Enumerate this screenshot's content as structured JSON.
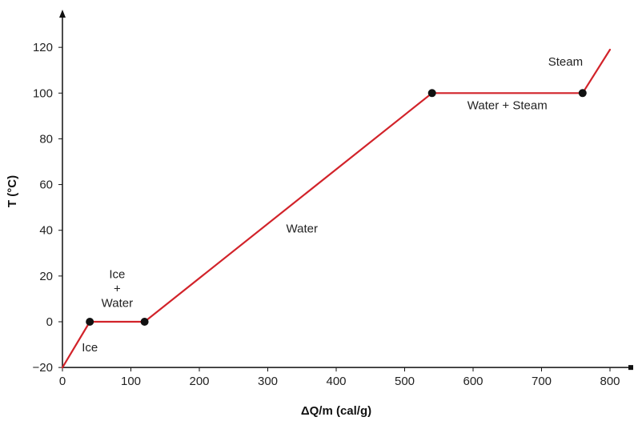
{
  "chart_data": {
    "type": "line",
    "title": "",
    "xlabel": "ΔQ/m (cal/g)",
    "ylabel": "T (°C)",
    "xlim": [
      0,
      840
    ],
    "ylim": [
      -20,
      130
    ],
    "x_ticks": [
      0,
      100,
      200,
      300,
      400,
      500,
      600,
      700,
      800
    ],
    "y_ticks": [
      -20,
      0,
      20,
      40,
      60,
      80,
      100,
      120
    ],
    "grid": false,
    "line_color": "#d2232a",
    "marker_color": "#111111",
    "series": [
      {
        "x": [
          0,
          40,
          120,
          540,
          760,
          800
        ],
        "y": [
          -20,
          0,
          0,
          100,
          100,
          119
        ]
      }
    ],
    "markers": [
      {
        "x": 40,
        "y": 0
      },
      {
        "x": 120,
        "y": 0
      },
      {
        "x": 540,
        "y": 100
      },
      {
        "x": 760,
        "y": 100
      }
    ],
    "annotations": [
      {
        "name": "annotation-ice",
        "lines": [
          "Ice"
        ],
        "x": 40,
        "y": -13
      },
      {
        "name": "annotation-ice-water",
        "lines": [
          "Ice",
          "+",
          "Water"
        ],
        "x": 80,
        "y": 19
      },
      {
        "name": "annotation-water",
        "lines": [
          "Water"
        ],
        "x": 350,
        "y": 39
      },
      {
        "name": "annotation-water-steam",
        "lines": [
          "Water + Steam"
        ],
        "x": 650,
        "y": 93
      },
      {
        "name": "annotation-steam",
        "lines": [
          "Steam"
        ],
        "x": 735,
        "y": 112
      }
    ]
  }
}
